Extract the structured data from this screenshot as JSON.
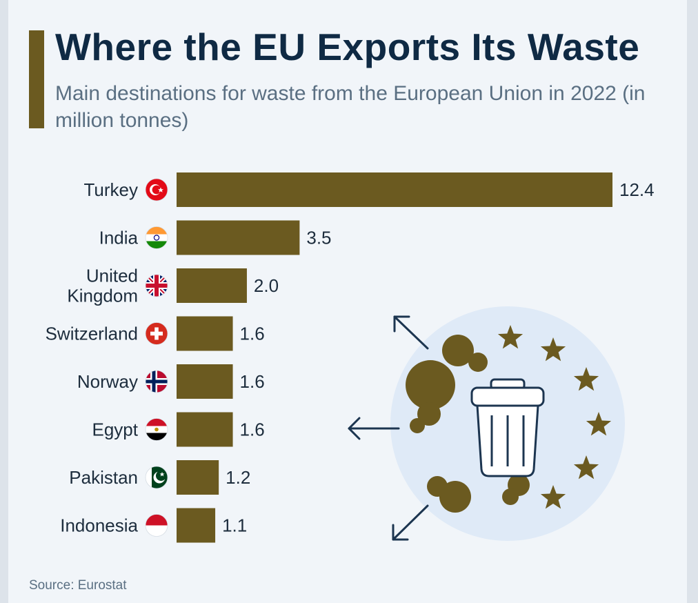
{
  "title": "Where the EU Exports Its Waste",
  "subtitle": "Main destinations for waste from the European Union in 2022 (in million tonnes)",
  "source": "Source: Eurostat",
  "colors": {
    "bar": "#6b5a20",
    "title": "#0f2a44",
    "circle_bg": "#dfeaf7"
  },
  "chart_data": {
    "type": "bar",
    "orientation": "horizontal",
    "categories": [
      [
        "Turkey"
      ],
      [
        "India"
      ],
      [
        "United",
        "Kingdom"
      ],
      [
        "Switzerland"
      ],
      [
        "Norway"
      ],
      [
        "Egypt"
      ],
      [
        "Pakistan"
      ],
      [
        "Indonesia"
      ]
    ],
    "values": [
      12.4,
      3.5,
      2.0,
      1.6,
      1.6,
      1.6,
      1.2,
      1.1
    ],
    "value_labels": [
      "12.4",
      "3.5",
      "2.0",
      "1.6",
      "1.6",
      "1.6",
      "1.2",
      "1.1"
    ],
    "flags": [
      "turkey-flag-icon",
      "india-flag-icon",
      "uk-flag-icon",
      "switzerland-flag-icon",
      "norway-flag-icon",
      "egypt-flag-icon",
      "pakistan-flag-icon",
      "indonesia-flag-icon"
    ],
    "xlim": [
      0,
      12.4
    ],
    "grid": false,
    "legend": "none"
  }
}
